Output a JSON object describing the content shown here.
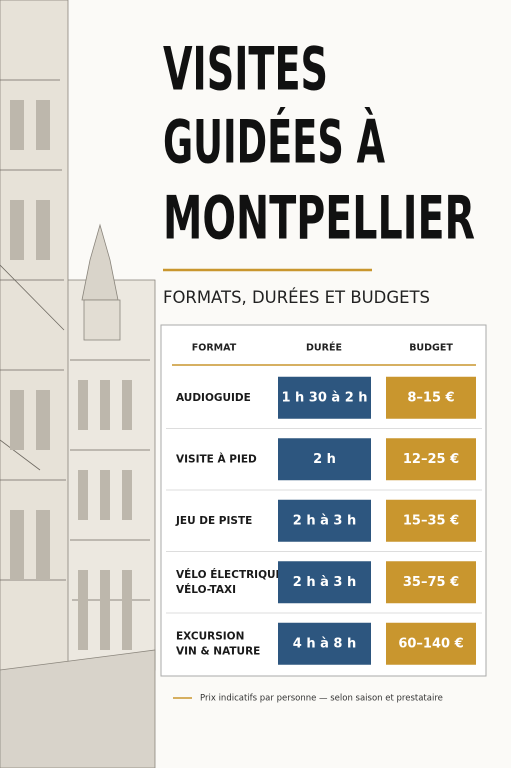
{
  "header": {
    "title_lines": [
      "VISITES",
      "GUIDÉES À",
      "MONTPELLIER"
    ],
    "subtitle": "FORMATS, DURÉES ET BUDGETS"
  },
  "table": {
    "headers": [
      "FORMAT",
      "DURÉE",
      "BUDGET"
    ],
    "rows": [
      {
        "format": [
          "AUDIOGUIDE"
        ],
        "duration": "1 h 30 à 2 h",
        "budget": "8–15 €"
      },
      {
        "format": [
          "VISITE À PIED"
        ],
        "duration": "2 h",
        "budget": "12–25 €"
      },
      {
        "format": [
          "JEU DE PISTE"
        ],
        "duration": "2 h à 3 h",
        "budget": "15–35 €"
      },
      {
        "format": [
          "VÉLO ÉLECTRIQUE /",
          "VÉLO-TAXI"
        ],
        "duration": "2 h à 3 h",
        "budget": "35–75 €"
      },
      {
        "format": [
          "EXCURSION",
          "VIN & NATURE"
        ],
        "duration": "4 h à 8 h",
        "budget": "60–140 €"
      }
    ]
  },
  "footnote": "Prix indicatifs par personne — selon saison et prestataire"
}
